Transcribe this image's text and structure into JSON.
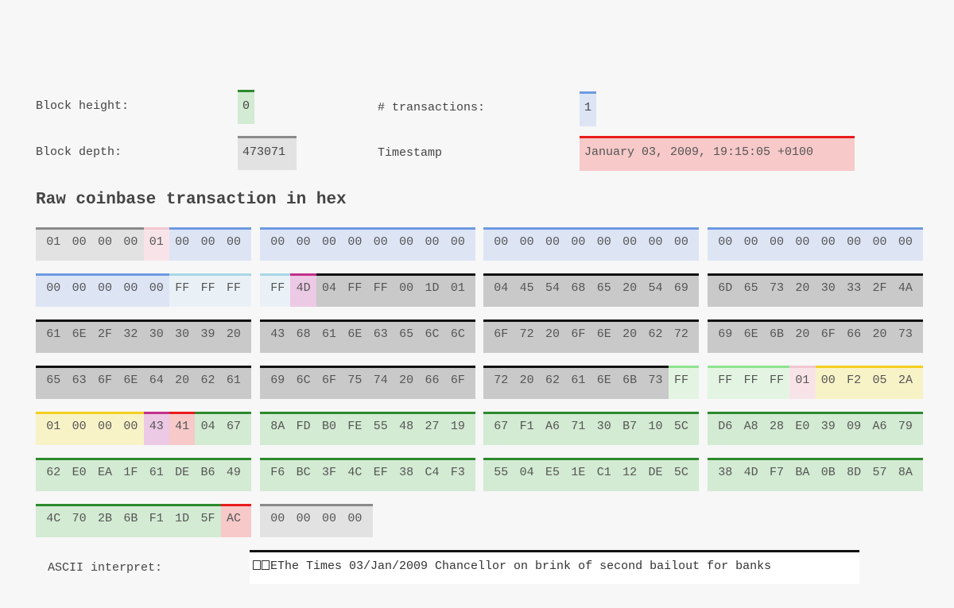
{
  "info": {
    "height_label": "Block height:",
    "height_value": "0",
    "depth_label": "Block depth:",
    "depth_value": "473071",
    "tx_label": "# transactions:",
    "tx_value": "1",
    "timestamp_label": "Timestamp",
    "timestamp_value": "January 03, 2009, 19:15:05 +0100"
  },
  "heading": "Raw coinbase transaction in hex",
  "palette": {
    "version": {
      "bg": "#e2e2e2",
      "bar": "#8a8a8a"
    },
    "count": {
      "bg": "#f8e4e8",
      "bar": "#f3c6d0"
    },
    "prevhash": {
      "bg": "#dde5f5",
      "bar": "#6d9ae2"
    },
    "index": {
      "bg": "#eaf1f6",
      "bar": "#a9d6e4"
    },
    "scriptlen": {
      "bg": "#ecc9e4",
      "bar": "#c0308a"
    },
    "script": {
      "bg": "#c9c9c9",
      "bar": "#111111"
    },
    "sequence": {
      "bg": "#e3f5e2",
      "bar": "#8fe28f"
    },
    "amount": {
      "bg": "#f8f2c7",
      "bar": "#f2cf1e"
    },
    "pkslen": {
      "bg": "#f7c9c9",
      "bar": "#ea1c1c"
    },
    "pubkey": {
      "bg": "#d3ead3",
      "bar": "#2c8a2c"
    },
    "locktime": {
      "bg": "#e2e2e2",
      "bar": "#8a8a8a"
    }
  },
  "hex_groups": [
    [
      {
        "t": "version",
        "bytes": [
          "01",
          "00",
          "00",
          "00"
        ]
      },
      {
        "t": "count",
        "bytes": [
          "01"
        ]
      },
      {
        "t": "prevhash",
        "bytes": [
          "00",
          "00",
          "00"
        ]
      }
    ],
    [
      {
        "t": "prevhash",
        "bytes": [
          "00",
          "00",
          "00",
          "00",
          "00",
          "00",
          "00",
          "00"
        ]
      }
    ],
    [
      {
        "t": "prevhash",
        "bytes": [
          "00",
          "00",
          "00",
          "00",
          "00",
          "00",
          "00",
          "00"
        ]
      }
    ],
    [
      {
        "t": "prevhash",
        "bytes": [
          "00",
          "00",
          "00",
          "00",
          "00",
          "00",
          "00",
          "00"
        ]
      }
    ],
    [
      {
        "t": "prevhash",
        "bytes": [
          "00",
          "00",
          "00",
          "00",
          "00"
        ]
      },
      {
        "t": "index",
        "bytes": [
          "FF",
          "FF",
          "FF"
        ]
      }
    ],
    [
      {
        "t": "index",
        "bytes": [
          "FF"
        ]
      },
      {
        "t": "scriptlen",
        "bytes": [
          "4D"
        ]
      },
      {
        "t": "script",
        "bytes": [
          "04",
          "FF",
          "FF",
          "00",
          "1D",
          "01"
        ]
      }
    ],
    [
      {
        "t": "script",
        "bytes": [
          "04",
          "45",
          "54",
          "68",
          "65",
          "20",
          "54",
          "69"
        ]
      }
    ],
    [
      {
        "t": "script",
        "bytes": [
          "6D",
          "65",
          "73",
          "20",
          "30",
          "33",
          "2F",
          "4A"
        ]
      }
    ],
    [
      {
        "t": "script",
        "bytes": [
          "61",
          "6E",
          "2F",
          "32",
          "30",
          "30",
          "39",
          "20"
        ]
      }
    ],
    [
      {
        "t": "script",
        "bytes": [
          "43",
          "68",
          "61",
          "6E",
          "63",
          "65",
          "6C",
          "6C"
        ]
      }
    ],
    [
      {
        "t": "script",
        "bytes": [
          "6F",
          "72",
          "20",
          "6F",
          "6E",
          "20",
          "62",
          "72"
        ]
      }
    ],
    [
      {
        "t": "script",
        "bytes": [
          "69",
          "6E",
          "6B",
          "20",
          "6F",
          "66",
          "20",
          "73"
        ]
      }
    ],
    [
      {
        "t": "script",
        "bytes": [
          "65",
          "63",
          "6F",
          "6E",
          "64",
          "20",
          "62",
          "61"
        ]
      }
    ],
    [
      {
        "t": "script",
        "bytes": [
          "69",
          "6C",
          "6F",
          "75",
          "74",
          "20",
          "66",
          "6F"
        ]
      }
    ],
    [
      {
        "t": "script",
        "bytes": [
          "72",
          "20",
          "62",
          "61",
          "6E",
          "6B",
          "73"
        ]
      },
      {
        "t": "sequence",
        "bytes": [
          "FF"
        ]
      }
    ],
    [
      {
        "t": "sequence",
        "bytes": [
          "FF",
          "FF",
          "FF"
        ]
      },
      {
        "t": "count",
        "bytes": [
          "01"
        ]
      },
      {
        "t": "amount",
        "bytes": [
          "00",
          "F2",
          "05",
          "2A"
        ]
      }
    ],
    [
      {
        "t": "amount",
        "bytes": [
          "01",
          "00",
          "00",
          "00"
        ]
      },
      {
        "t": "scriptlen",
        "bytes": [
          "43"
        ]
      },
      {
        "t": "pkslen",
        "bytes": [
          "41"
        ]
      },
      {
        "t": "pubkey",
        "bytes": [
          "04",
          "67"
        ]
      }
    ],
    [
      {
        "t": "pubkey",
        "bytes": [
          "8A",
          "FD",
          "B0",
          "FE",
          "55",
          "48",
          "27",
          "19"
        ]
      }
    ],
    [
      {
        "t": "pubkey",
        "bytes": [
          "67",
          "F1",
          "A6",
          "71",
          "30",
          "B7",
          "10",
          "5C"
        ]
      }
    ],
    [
      {
        "t": "pubkey",
        "bytes": [
          "D6",
          "A8",
          "28",
          "E0",
          "39",
          "09",
          "A6",
          "79"
        ]
      }
    ],
    [
      {
        "t": "pubkey",
        "bytes": [
          "62",
          "E0",
          "EA",
          "1F",
          "61",
          "DE",
          "B6",
          "49"
        ]
      }
    ],
    [
      {
        "t": "pubkey",
        "bytes": [
          "F6",
          "BC",
          "3F",
          "4C",
          "EF",
          "38",
          "C4",
          "F3"
        ]
      }
    ],
    [
      {
        "t": "pubkey",
        "bytes": [
          "55",
          "04",
          "E5",
          "1E",
          "C1",
          "12",
          "DE",
          "5C"
        ]
      }
    ],
    [
      {
        "t": "pubkey",
        "bytes": [
          "38",
          "4D",
          "F7",
          "BA",
          "0B",
          "8D",
          "57",
          "8A"
        ]
      }
    ],
    [
      {
        "t": "pubkey",
        "bytes": [
          "4C",
          "70",
          "2B",
          "6B",
          "F1",
          "1D",
          "5F"
        ]
      },
      {
        "t": "pkslen",
        "bytes": [
          "AC"
        ]
      }
    ],
    [
      {
        "t": "locktime",
        "bytes": [
          "00",
          "00",
          "00",
          "00"
        ]
      }
    ]
  ],
  "ascii": {
    "label": "ASCII interpret:",
    "text": "EThe Times 03/Jan/2009 Chancellor on brink of second bailout for banks"
  }
}
